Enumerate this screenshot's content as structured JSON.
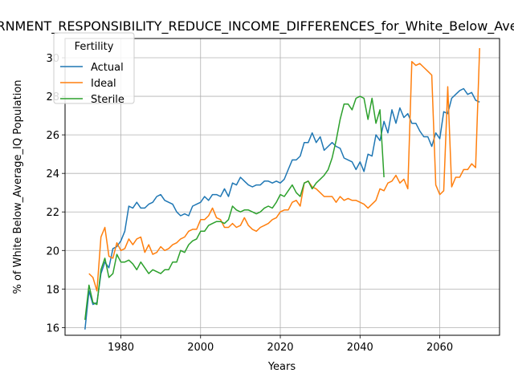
{
  "chart_data": {
    "type": "line",
    "title": "GOVERNMENT_RESPONSIBILITY_REDUCE_INCOME_DIFFERENCES_for_White_Below_Average_IQ",
    "xlabel": "Years",
    "ylabel": "% of White Below_Average_IQ Population",
    "xlim": [
      1966,
      2075
    ],
    "ylim": [
      15.6,
      31.0
    ],
    "xticks": [
      1980,
      2000,
      2020,
      2040,
      2060
    ],
    "yticks": [
      16,
      18,
      20,
      22,
      24,
      26,
      28,
      30
    ],
    "grid": true,
    "legend": {
      "title": "Fertility",
      "placement": "top-left"
    },
    "series": [
      {
        "name": "Actual",
        "color": "#1f77b4",
        "x": [
          1971,
          1972,
          1973,
          1974,
          1975,
          1976,
          1977,
          1978,
          1979,
          1980,
          1981,
          1982,
          1983,
          1984,
          1985,
          1986,
          1987,
          1988,
          1989,
          1990,
          1991,
          1992,
          1993,
          1994,
          1995,
          1996,
          1997,
          1998,
          1999,
          2000,
          2001,
          2002,
          2003,
          2004,
          2005,
          2006,
          2007,
          2008,
          2009,
          2010,
          2011,
          2012,
          2013,
          2014,
          2015,
          2016,
          2017,
          2018,
          2019,
          2020,
          2021,
          2022,
          2023,
          2024,
          2025,
          2026,
          2027,
          2028,
          2029,
          2030,
          2031,
          2032,
          2033,
          2034,
          2035,
          2036,
          2037,
          2038,
          2039,
          2040,
          2041,
          2042,
          2043,
          2044,
          2045,
          2046,
          2047,
          2048,
          2049,
          2050,
          2051,
          2052,
          2053,
          2054,
          2055,
          2056,
          2057,
          2058,
          2059,
          2060,
          2061,
          2062,
          2063,
          2064,
          2065,
          2066,
          2067,
          2068,
          2069,
          2070
        ],
        "y": [
          15.9,
          17.9,
          17.2,
          17.3,
          18.8,
          19.4,
          19.1,
          20.1,
          20.2,
          20.5,
          21.0,
          22.3,
          22.2,
          22.5,
          22.2,
          22.2,
          22.4,
          22.5,
          22.8,
          22.9,
          22.6,
          22.5,
          22.4,
          22.0,
          21.8,
          21.9,
          21.8,
          22.3,
          22.4,
          22.5,
          22.8,
          22.6,
          22.9,
          22.9,
          22.8,
          23.2,
          22.8,
          23.5,
          23.4,
          23.8,
          23.6,
          23.4,
          23.3,
          23.4,
          23.4,
          23.6,
          23.6,
          23.5,
          23.6,
          23.5,
          23.7,
          24.2,
          24.7,
          24.7,
          24.9,
          25.6,
          25.6,
          26.1,
          25.6,
          25.9,
          25.2,
          25.4,
          25.6,
          25.4,
          25.3,
          24.8,
          24.7,
          24.6,
          24.2,
          24.6,
          24.1,
          25.0,
          24.9,
          26.0,
          25.7,
          26.7,
          26.1,
          27.3,
          26.6,
          27.4,
          26.9,
          27.1,
          26.6,
          26.6,
          26.2,
          25.9,
          25.9,
          25.4,
          26.1,
          25.8,
          27.2,
          27.1,
          27.9,
          28.1,
          28.3,
          28.4,
          28.1,
          28.2,
          27.8,
          27.7
        ]
      },
      {
        "name": "Ideal",
        "color": "#ff7f0e",
        "x": [
          1972,
          1973,
          1974,
          1975,
          1976,
          1977,
          1978,
          1979,
          1980,
          1981,
          1982,
          1983,
          1984,
          1985,
          1986,
          1987,
          1988,
          1989,
          1990,
          1991,
          1992,
          1993,
          1994,
          1995,
          1996,
          1997,
          1998,
          1999,
          2000,
          2001,
          2002,
          2003,
          2004,
          2005,
          2006,
          2007,
          2008,
          2009,
          2010,
          2011,
          2012,
          2013,
          2014,
          2015,
          2016,
          2017,
          2018,
          2019,
          2020,
          2021,
          2022,
          2023,
          2024,
          2025,
          2026,
          2027,
          2028,
          2029,
          2030,
          2031,
          2032,
          2033,
          2034,
          2035,
          2036,
          2037,
          2038,
          2039,
          2040,
          2041,
          2042,
          2043,
          2044,
          2045,
          2046,
          2047,
          2048,
          2049,
          2050,
          2051,
          2052,
          2053,
          2054,
          2055,
          2056,
          2057,
          2058,
          2059,
          2060,
          2061,
          2062,
          2063,
          2064,
          2065,
          2066,
          2067,
          2068,
          2069,
          2070
        ],
        "y": [
          18.8,
          18.6,
          17.9,
          20.7,
          21.2,
          19.7,
          19.6,
          20.4,
          20.0,
          20.1,
          20.6,
          20.3,
          20.6,
          20.7,
          19.9,
          20.3,
          19.8,
          19.9,
          20.2,
          20.0,
          20.1,
          20.3,
          20.4,
          20.6,
          20.7,
          21.0,
          21.1,
          21.1,
          21.6,
          21.6,
          21.8,
          22.2,
          21.7,
          21.6,
          21.2,
          21.2,
          21.4,
          21.2,
          21.3,
          21.7,
          21.3,
          21.1,
          21.0,
          21.2,
          21.3,
          21.4,
          21.6,
          21.7,
          22.0,
          22.1,
          22.1,
          22.5,
          22.6,
          22.3,
          23.5,
          23.6,
          23.3,
          23.2,
          23.0,
          22.8,
          22.8,
          22.8,
          22.5,
          22.8,
          22.6,
          22.7,
          22.6,
          22.6,
          22.5,
          22.4,
          22.2,
          22.4,
          22.6,
          23.2,
          23.1,
          23.5,
          23.6,
          23.9,
          23.5,
          23.7,
          23.2,
          29.8,
          29.6,
          29.7,
          29.5,
          29.3,
          29.1,
          23.4,
          22.9,
          23.1,
          28.5,
          23.3,
          23.8,
          23.8,
          24.2,
          24.2,
          24.5,
          24.3,
          30.5
        ]
      },
      {
        "name": "Sterile",
        "color": "#2ca02c",
        "x": [
          1971,
          1972,
          1973,
          1974,
          1975,
          1976,
          1977,
          1978,
          1979,
          1980,
          1981,
          1982,
          1983,
          1984,
          1985,
          1986,
          1987,
          1988,
          1989,
          1990,
          1991,
          1992,
          1993,
          1994,
          1995,
          1996,
          1997,
          1998,
          1999,
          2000,
          2001,
          2002,
          2003,
          2004,
          2005,
          2006,
          2007,
          2008,
          2009,
          2010,
          2011,
          2012,
          2013,
          2014,
          2015,
          2016,
          2017,
          2018,
          2019,
          2020,
          2021,
          2022,
          2023,
          2024,
          2025,
          2026,
          2027,
          2028,
          2029,
          2030,
          2031,
          2032,
          2033,
          2034,
          2035,
          2036,
          2037,
          2038,
          2039,
          2040,
          2041,
          2042,
          2043,
          2044,
          2045,
          2046
        ],
        "y": [
          16.4,
          18.2,
          17.3,
          17.2,
          19.0,
          19.6,
          18.6,
          18.8,
          19.8,
          19.4,
          19.4,
          19.5,
          19.3,
          19.0,
          19.4,
          19.1,
          18.8,
          19.0,
          18.9,
          18.8,
          19.0,
          19.0,
          19.4,
          19.4,
          20.0,
          19.9,
          20.3,
          20.5,
          20.6,
          21.0,
          21.0,
          21.3,
          21.4,
          21.5,
          21.5,
          21.4,
          21.6,
          22.3,
          22.1,
          22.0,
          22.1,
          22.1,
          22.0,
          21.9,
          22.0,
          22.2,
          22.3,
          22.2,
          22.5,
          22.9,
          22.8,
          23.1,
          23.4,
          23.0,
          22.8,
          23.5,
          23.6,
          23.2,
          23.5,
          23.7,
          23.9,
          24.2,
          24.8,
          25.7,
          26.8,
          27.6,
          27.6,
          27.3,
          27.9,
          28.0,
          27.9,
          26.8,
          27.9,
          26.6,
          27.3,
          23.8
        ]
      }
    ]
  }
}
